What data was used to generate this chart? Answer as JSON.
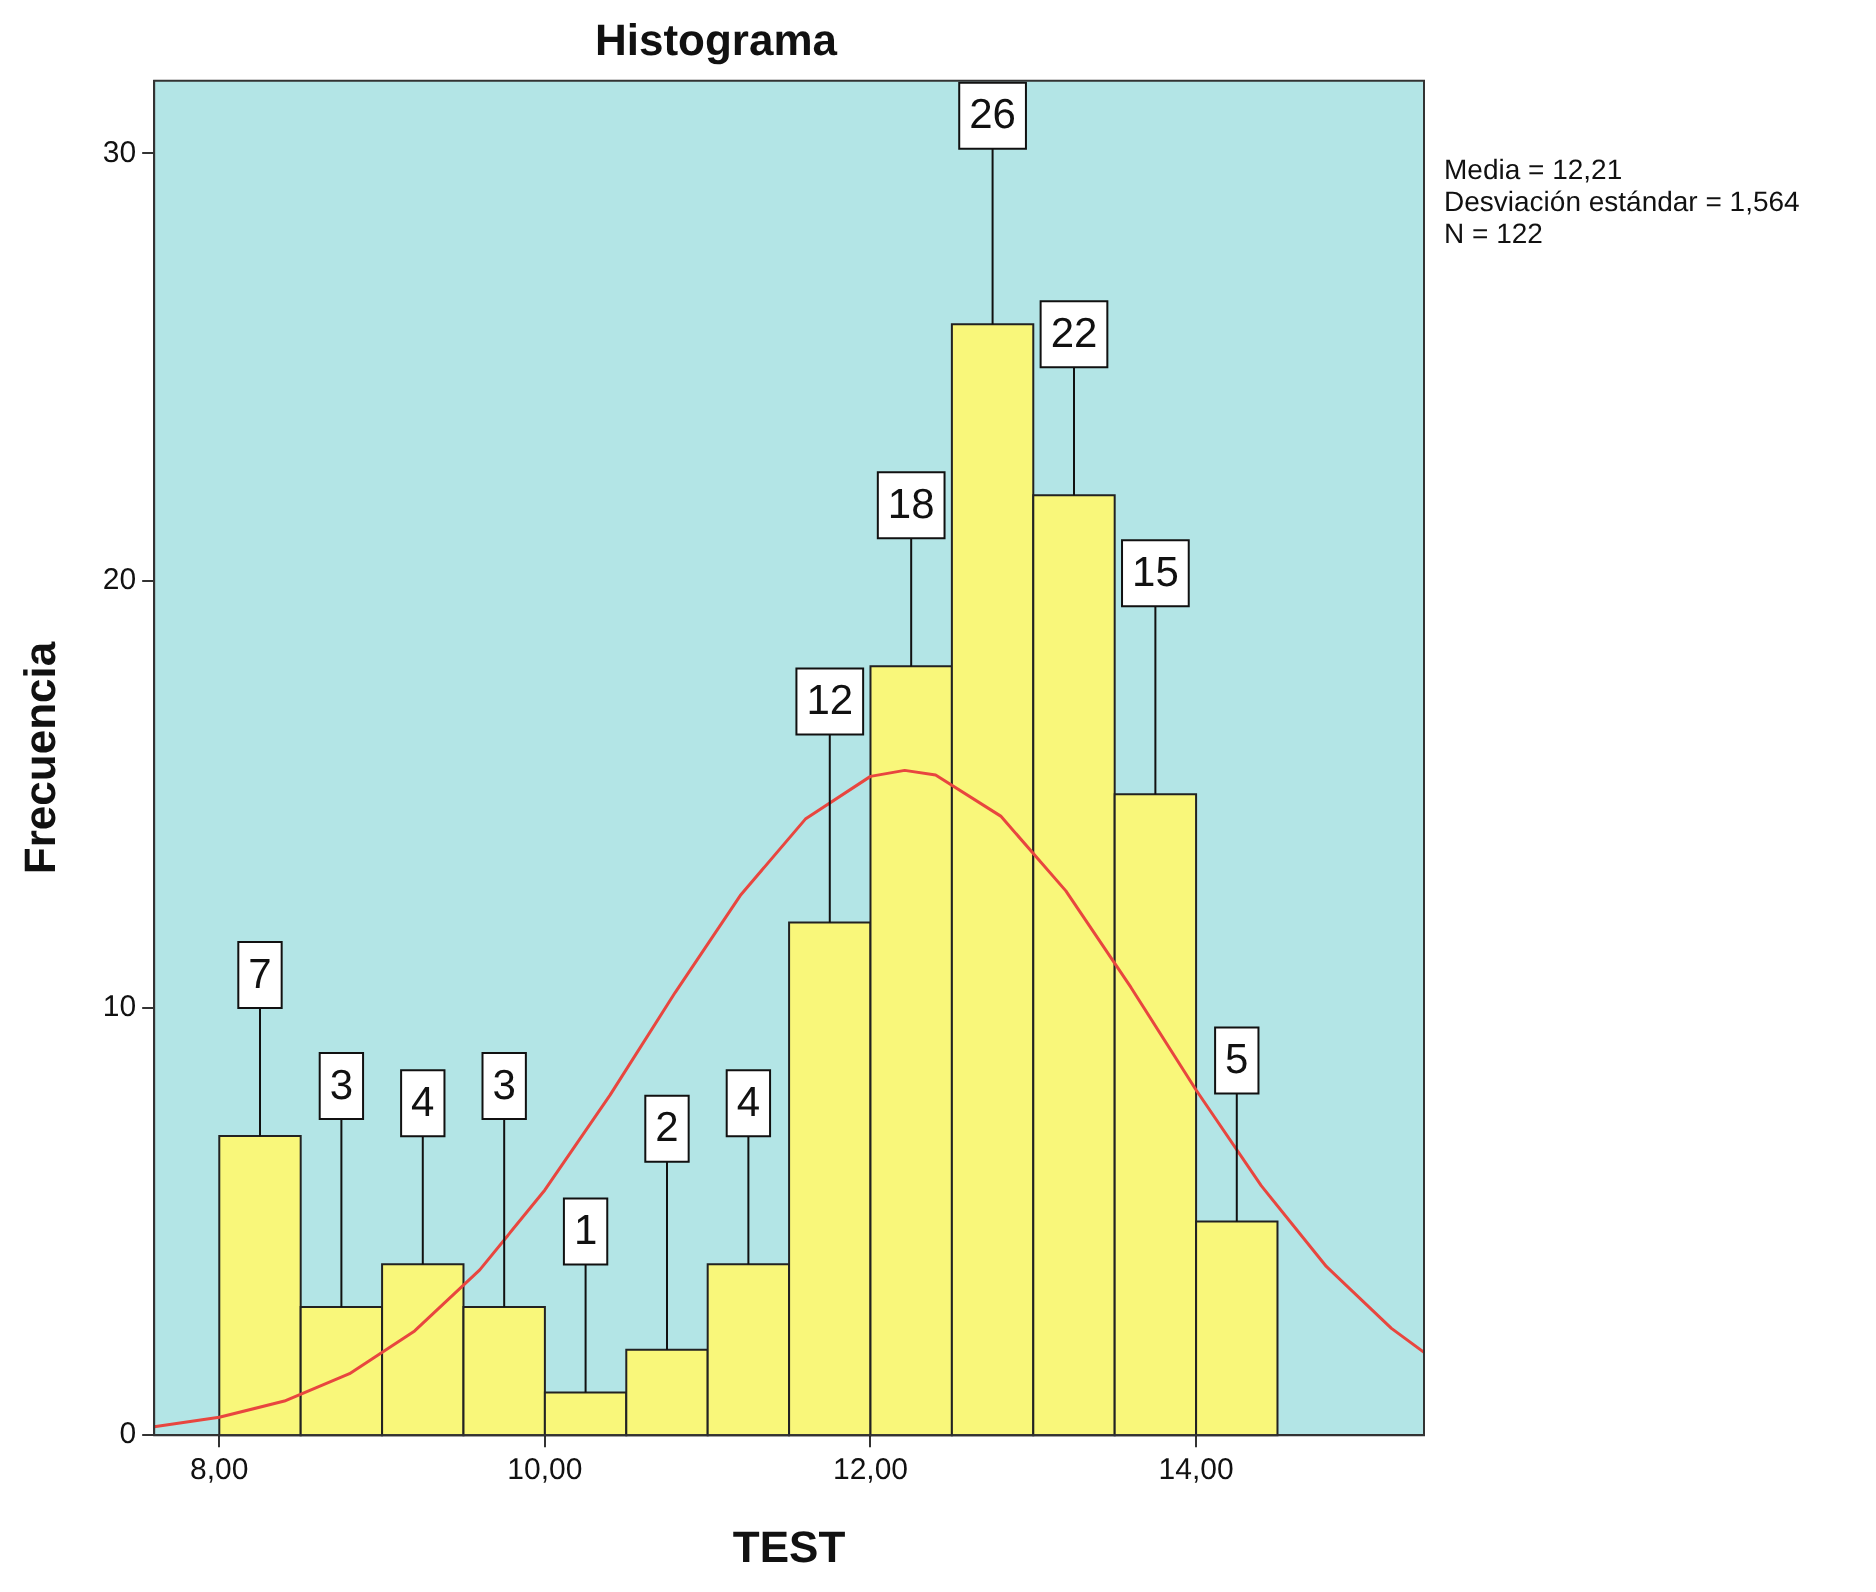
{
  "chart_data": {
    "type": "histogram",
    "title": "Histograma",
    "xlabel": "TEST",
    "ylabel": "Frecuencia",
    "bins": [
      8,
      8.5,
      9,
      9.5,
      10,
      10.5,
      11,
      11.5,
      12,
      12.5,
      13,
      13.5,
      14,
      14.5
    ],
    "series": [
      {
        "type": "histogram",
        "color": "#f9f77a",
        "values": [
          7,
          3,
          4,
          3,
          1,
          2,
          4,
          12,
          18,
          26,
          22,
          15,
          5
        ],
        "value_labels": [
          "7",
          "3",
          "4",
          "3",
          "1",
          "2",
          "4",
          "12",
          "18",
          "26",
          "22",
          "15",
          "5"
        ]
      },
      {
        "type": "line",
        "color": "#e8463f",
        "x": [
          7.6,
          8,
          8.4,
          8.8,
          9.2,
          9.6,
          10,
          10.4,
          10.8,
          11.2,
          11.6,
          12,
          12.21,
          12.4,
          12.8,
          13.2,
          13.6,
          14,
          14.4,
          14.8,
          15.2,
          15.4
        ],
        "values": [
          0.2,
          0.42,
          0.8,
          1.44,
          2.44,
          3.87,
          5.74,
          7.96,
          10.36,
          12.63,
          14.42,
          15.42,
          15.56,
          15.45,
          14.49,
          12.74,
          10.48,
          8.08,
          5.84,
          3.95,
          2.5,
          1.94
        ]
      }
    ],
    "xlim": [
      7.6,
      15.4
    ],
    "xticks": [
      {
        "value": 8,
        "label": "8,00"
      },
      {
        "value": 10,
        "label": "10,00"
      },
      {
        "value": 12,
        "label": "12,00"
      },
      {
        "value": 14,
        "label": "14,00"
      }
    ],
    "ylim": [
      0,
      31.7
    ],
    "yticks": [
      0,
      10,
      20,
      30
    ],
    "grid": false,
    "marker": "none",
    "annotations": [
      "Media = 12,21",
      "Desviación estándar = 1,564",
      "N = 122"
    ]
  }
}
